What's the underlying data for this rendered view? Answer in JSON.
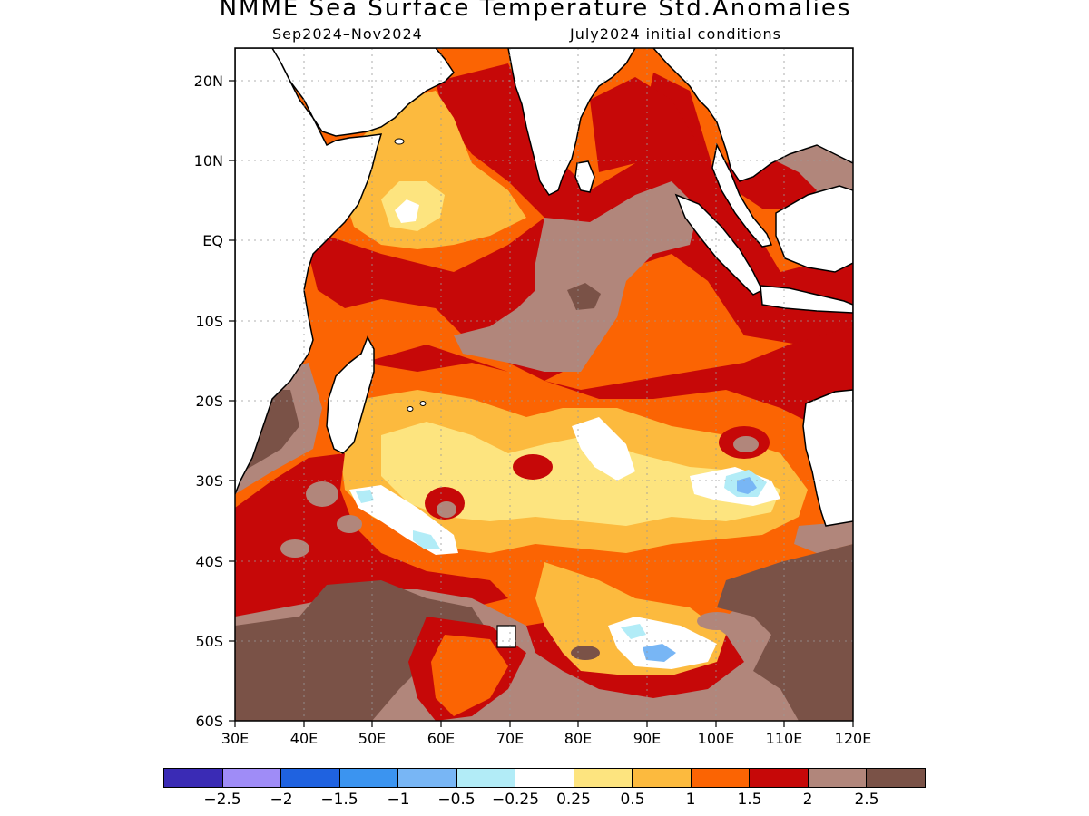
{
  "title": "NMME Sea Surface Temperature Std.Anomalies",
  "subtitle_period": "Sep2024–Nov2024",
  "subtitle_ic": "July2024 initial conditions",
  "map": {
    "region": "Indian Ocean",
    "lon_range": [
      30,
      120
    ],
    "lat_range": [
      -60,
      24
    ],
    "lat_ticks": [
      "20N",
      "10N",
      "EQ",
      "10S",
      "20S",
      "30S",
      "40S",
      "50S",
      "60S"
    ],
    "lon_ticks": [
      "30E",
      "40E",
      "50E",
      "60E",
      "70E",
      "80E",
      "90E",
      "100E",
      "110E",
      "120E"
    ],
    "gridlines": true,
    "land_color": "#ffffff",
    "coastline_color": "#000000"
  },
  "legend": {
    "colors": [
      "#3a2bb5",
      "#9f8cf7",
      "#1f62e0",
      "#3b94f0",
      "#78b6f5",
      "#b2ecf7",
      "#ffffff",
      "#fde47f",
      "#fcba3e",
      "#fb6403",
      "#c60808",
      "#b1867b",
      "#7a5247"
    ],
    "labels": [
      "−2.5",
      "−2",
      "−1.5",
      "−1",
      "−0.5",
      "−0.25",
      "0.25",
      "0.5",
      "1",
      "1.5",
      "2",
      "2.5"
    ]
  }
}
